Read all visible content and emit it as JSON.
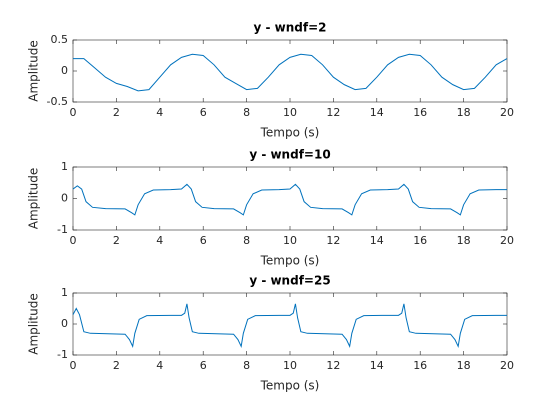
{
  "chart_data": [
    {
      "type": "line",
      "title": "y - wndf=2",
      "xlabel": "Tempo (s)",
      "ylabel": "Amplitude",
      "x": [
        0,
        0.5,
        1,
        1.5,
        2,
        2.5,
        3,
        3.5,
        4,
        4.5,
        5,
        5.5,
        6,
        6.5,
        7,
        7.5,
        8,
        8.5,
        9,
        9.5,
        10,
        10.5,
        11,
        11.5,
        12,
        12.5,
        13,
        13.5,
        14,
        14.5,
        15,
        15.5,
        16,
        16.5,
        17,
        17.5,
        18,
        18.5,
        19,
        19.5,
        20
      ],
      "series": [
        {
          "color": "#0072bd",
          "values": [
            0.2,
            0.2,
            0.05,
            -0.1,
            -0.2,
            -0.25,
            -0.32,
            -0.3,
            -0.1,
            0.1,
            0.22,
            0.27,
            0.25,
            0.1,
            -0.1,
            -0.2,
            -0.3,
            -0.28,
            -0.1,
            0.1,
            0.22,
            0.27,
            0.25,
            0.1,
            -0.1,
            -0.22,
            -0.3,
            -0.28,
            -0.1,
            0.1,
            0.22,
            0.27,
            0.25,
            0.1,
            -0.1,
            -0.22,
            -0.3,
            -0.28,
            -0.1,
            0.1,
            0.2
          ]
        }
      ],
      "xlim": [
        0,
        20
      ],
      "xticks": [
        0,
        2,
        4,
        6,
        8,
        10,
        12,
        14,
        16,
        18,
        20
      ],
      "ylim": [
        -0.5,
        0.5
      ],
      "yticks": [
        -0.5,
        0,
        0.5
      ],
      "grid": false
    },
    {
      "type": "line",
      "title": "y - wndf=10",
      "xlabel": "Tempo (s)",
      "ylabel": "Amplitude",
      "x": [
        0,
        0.2,
        0.4,
        0.6,
        0.9,
        1.5,
        2.4,
        2.7,
        2.85,
        3,
        3.3,
        3.7,
        4.5,
        5,
        5.25,
        5.45,
        5.65,
        5.95,
        6.5,
        7.4,
        7.7,
        7.85,
        8,
        8.3,
        8.7,
        9.5,
        10,
        10.25,
        10.45,
        10.65,
        10.95,
        11.5,
        12.4,
        12.7,
        12.85,
        13,
        13.3,
        13.7,
        14.5,
        15,
        15.25,
        15.45,
        15.65,
        15.95,
        16.5,
        17.4,
        17.7,
        17.85,
        18,
        18.3,
        18.7,
        19.5,
        20
      ],
      "series": [
        {
          "color": "#0072bd",
          "values": [
            0.3,
            0.4,
            0.3,
            -0.1,
            -0.28,
            -0.32,
            -0.33,
            -0.45,
            -0.52,
            -0.2,
            0.15,
            0.27,
            0.28,
            0.3,
            0.45,
            0.3,
            -0.1,
            -0.28,
            -0.32,
            -0.33,
            -0.45,
            -0.52,
            -0.2,
            0.15,
            0.27,
            0.28,
            0.3,
            0.45,
            0.3,
            -0.1,
            -0.28,
            -0.32,
            -0.33,
            -0.45,
            -0.52,
            -0.2,
            0.15,
            0.27,
            0.28,
            0.3,
            0.45,
            0.3,
            -0.1,
            -0.28,
            -0.32,
            -0.33,
            -0.45,
            -0.52,
            -0.2,
            0.15,
            0.27,
            0.28,
            0.28
          ]
        }
      ],
      "xlim": [
        0,
        20
      ],
      "xticks": [
        0,
        2,
        4,
        6,
        8,
        10,
        12,
        14,
        16,
        18,
        20
      ],
      "ylim": [
        -1,
        1
      ],
      "yticks": [
        -1,
        0,
        1
      ],
      "grid": false
    },
    {
      "type": "line",
      "title": "y - wndf=25",
      "xlabel": "Tempo (s)",
      "ylabel": "Amplitude",
      "x": [
        0,
        0.15,
        0.3,
        0.5,
        0.8,
        2.4,
        2.6,
        2.75,
        2.85,
        3.05,
        3.4,
        4.5,
        5,
        5.15,
        5.25,
        5.35,
        5.5,
        5.8,
        7.4,
        7.6,
        7.75,
        7.85,
        8.05,
        8.4,
        9.5,
        10,
        10.15,
        10.25,
        10.35,
        10.5,
        10.8,
        12.4,
        12.6,
        12.75,
        12.85,
        13.05,
        13.4,
        14.5,
        15,
        15.15,
        15.25,
        15.35,
        15.5,
        15.8,
        17.4,
        17.6,
        17.75,
        17.85,
        18.05,
        18.4,
        19.5,
        20
      ],
      "series": [
        {
          "color": "#0072bd",
          "values": [
            0.3,
            0.5,
            0.3,
            -0.25,
            -0.3,
            -0.33,
            -0.5,
            -0.72,
            -0.3,
            0.15,
            0.27,
            0.28,
            0.28,
            0.35,
            0.65,
            0.2,
            -0.25,
            -0.3,
            -0.33,
            -0.5,
            -0.72,
            -0.3,
            0.15,
            0.27,
            0.28,
            0.28,
            0.35,
            0.65,
            0.2,
            -0.25,
            -0.3,
            -0.33,
            -0.5,
            -0.72,
            -0.3,
            0.15,
            0.27,
            0.28,
            0.28,
            0.35,
            0.65,
            0.2,
            -0.25,
            -0.3,
            -0.33,
            -0.5,
            -0.72,
            -0.3,
            0.15,
            0.27,
            0.28,
            0.28
          ]
        }
      ],
      "xlim": [
        0,
        20
      ],
      "xticks": [
        0,
        2,
        4,
        6,
        8,
        10,
        12,
        14,
        16,
        18,
        20
      ],
      "ylim": [
        -1,
        1
      ],
      "yticks": [
        -1,
        0,
        1
      ],
      "grid": false
    }
  ]
}
